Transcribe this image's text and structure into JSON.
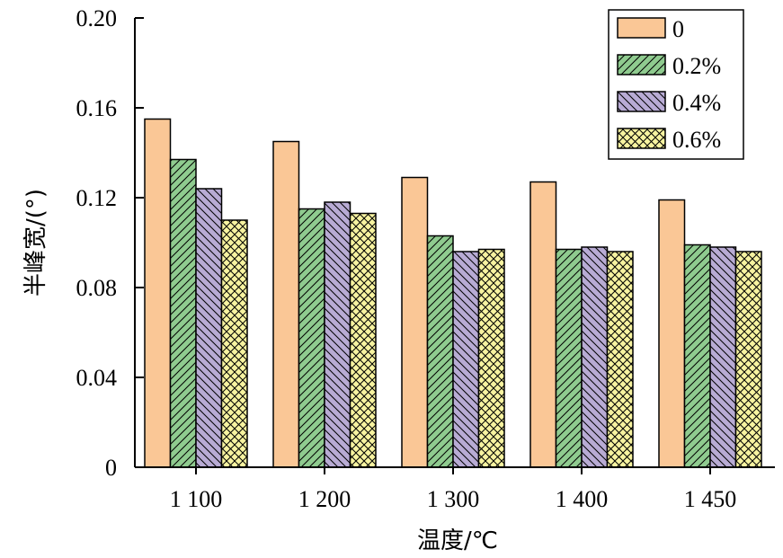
{
  "chart_data": {
    "type": "bar",
    "title": "",
    "xlabel": "温度/℃",
    "ylabel": "半峰宽/(°)",
    "categories": [
      "1 100",
      "1 200",
      "1 300",
      "1 400",
      "1 450"
    ],
    "ylim": [
      0,
      0.2
    ],
    "yticks": [
      "0",
      "0.04",
      "0.08",
      "0.12",
      "0.16",
      "0.20"
    ],
    "ytick_values": [
      0,
      0.04,
      0.08,
      0.12,
      0.16,
      0.2
    ],
    "legend_position": "top-right",
    "grid": false,
    "series": [
      {
        "name": "0",
        "color": "#FAC796",
        "pattern": "none",
        "values": [
          0.155,
          0.145,
          0.129,
          0.127,
          0.119
        ]
      },
      {
        "name": "0.2%",
        "color": "#8FCB8F",
        "pattern": "forward",
        "values": [
          0.137,
          0.115,
          0.103,
          0.097,
          0.099
        ]
      },
      {
        "name": "0.4%",
        "color": "#B8ABD4",
        "pattern": "backward",
        "values": [
          0.124,
          0.118,
          0.096,
          0.098,
          0.098
        ]
      },
      {
        "name": "0.6%",
        "color": "#F7F3A0",
        "pattern": "cross",
        "values": [
          0.11,
          0.113,
          0.097,
          0.096,
          0.096
        ]
      }
    ]
  }
}
